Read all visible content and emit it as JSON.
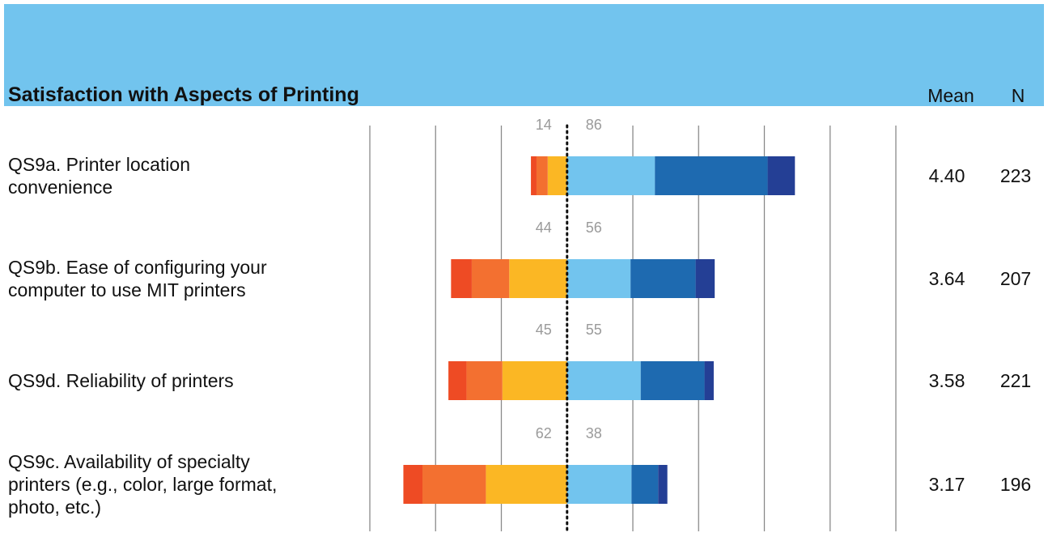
{
  "header": {
    "title": "Satisfaction with Aspects of Printing",
    "mean_label": "Mean",
    "n_label": "N",
    "band_color": "#72c4ee"
  },
  "chart_data": {
    "type": "bar",
    "subtype": "diverging-stacked-bar",
    "title": "Satisfaction with Aspects of Printing",
    "unit": "percent",
    "x_range": [
      -60,
      100
    ],
    "x_ticks": [
      -60,
      -40,
      -20,
      0,
      20,
      40,
      60,
      80,
      100
    ],
    "grid": true,
    "segment_colors": [
      "#ee4b24",
      "#f37030",
      "#fbb724",
      "#72c4ee",
      "#1e6ab0",
      "#243f95"
    ],
    "rows": [
      {
        "label_lines": [
          "QS9a. Printer location",
          "convenience"
        ],
        "segments": [
          1.7,
          3.4,
          5.9,
          26.7,
          34.3,
          8.3
        ],
        "neg_pct": "14",
        "pos_pct": "86",
        "mean": "4.40",
        "n": "223"
      },
      {
        "label_lines": [
          "QS9b. Ease of configuring your",
          "computer to use MIT printers"
        ],
        "segments": [
          6.3,
          11.4,
          17.6,
          19.3,
          19.8,
          5.8
        ],
        "neg_pct": "44",
        "pos_pct": "56",
        "mean": "3.64",
        "n": "207"
      },
      {
        "label_lines": [
          "QS9d. Reliability of printers"
        ],
        "segments": [
          5.5,
          10.9,
          19.7,
          22.4,
          19.4,
          2.8
        ],
        "neg_pct": "45",
        "pos_pct": "55",
        "mean": "3.58",
        "n": "221"
      },
      {
        "label_lines": [
          "QS9c. Availability of specialty",
          "printers (e.g., color, large format,",
          "photo, etc.)"
        ],
        "segments": [
          5.8,
          19.3,
          24.7,
          19.6,
          8.1,
          2.8
        ],
        "neg_pct": "62",
        "pos_pct": "38",
        "mean": "3.17",
        "n": "196"
      }
    ]
  }
}
